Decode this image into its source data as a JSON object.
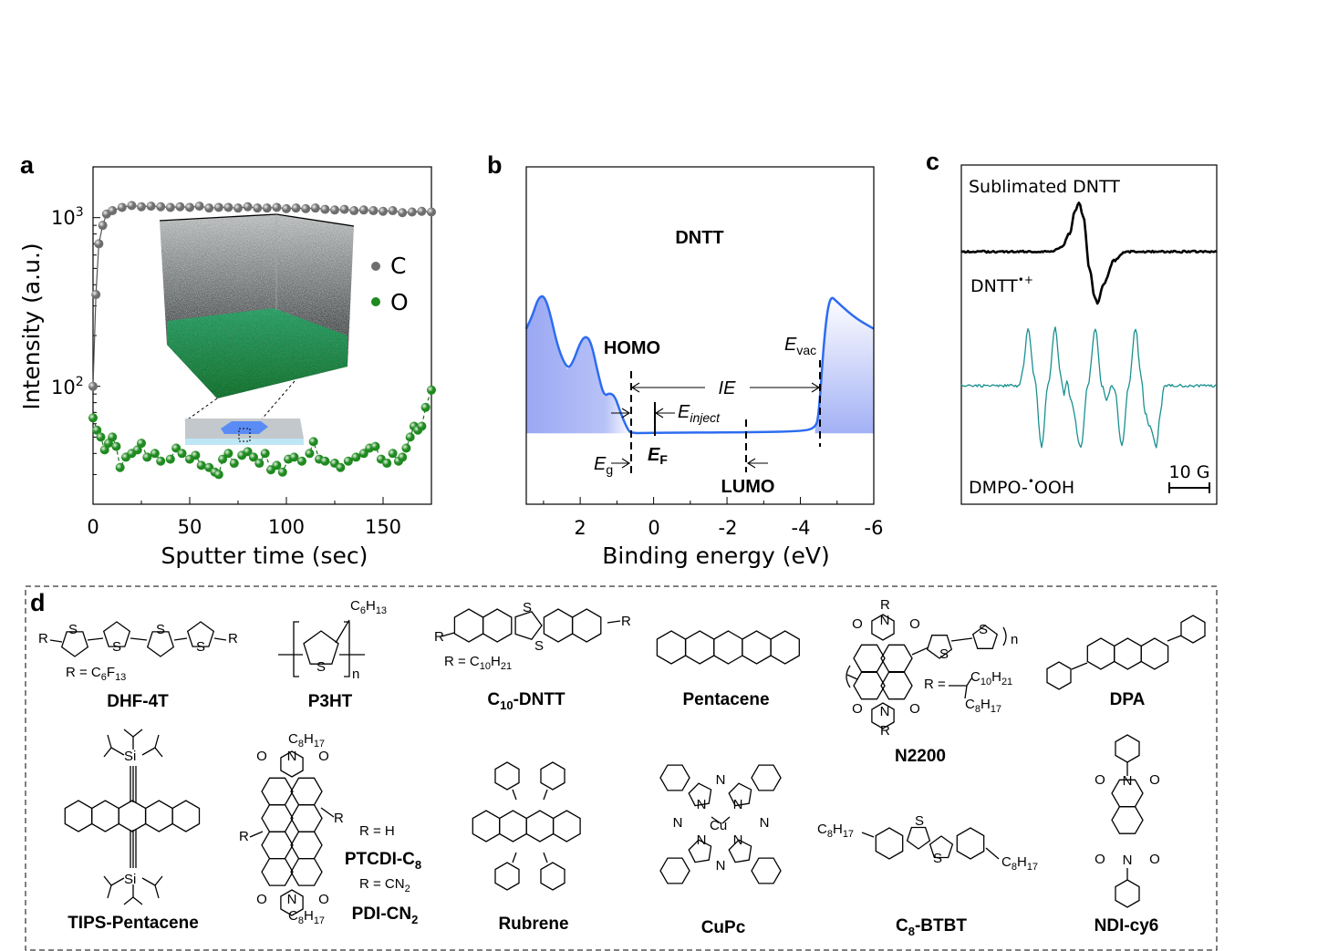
{
  "panels": {
    "a": "a",
    "b": "b",
    "c": "c",
    "d": "d"
  },
  "colors": {
    "carbon": "#6e6e6e",
    "oxygen": "#1f8a1f",
    "ups_curve": "#2d6cf0",
    "ups_fill": "#9fb0f5",
    "epr_dntt": "#000000",
    "epr_dmpo": "#1a9090"
  },
  "chart_data": [
    {
      "panel": "a",
      "type": "scatter",
      "xlabel": "Sputter time (sec)",
      "ylabel": "Intensity (a.u.)",
      "xlim": [
        0,
        175
      ],
      "ylim": [
        20,
        2000
      ],
      "yscale": "log",
      "xticks": [
        "0",
        "50",
        "100",
        "150"
      ],
      "yticks": [
        {
          "base": "10",
          "exp": "3"
        },
        {
          "base": "10",
          "exp": "2"
        }
      ],
      "legend_placement": "right",
      "series": [
        {
          "name": "C",
          "color": "#6e6e6e",
          "points": [
            [
              0,
              100
            ],
            [
              1.5,
              350
            ],
            [
              3,
              700
            ],
            [
              5,
              900
            ],
            [
              7,
              1050
            ],
            [
              10,
              1100
            ],
            [
              15,
              1150
            ],
            [
              20,
              1180
            ],
            [
              25,
              1160
            ],
            [
              30,
              1170
            ],
            [
              35,
              1160
            ],
            [
              40,
              1150
            ],
            [
              45,
              1160
            ],
            [
              50,
              1150
            ],
            [
              55,
              1170
            ],
            [
              60,
              1140
            ],
            [
              65,
              1150
            ],
            [
              70,
              1150
            ],
            [
              75,
              1140
            ],
            [
              80,
              1160
            ],
            [
              85,
              1140
            ],
            [
              90,
              1140
            ],
            [
              95,
              1150
            ],
            [
              100,
              1130
            ],
            [
              105,
              1140
            ],
            [
              110,
              1130
            ],
            [
              115,
              1140
            ],
            [
              120,
              1120
            ],
            [
              125,
              1110
            ],
            [
              130,
              1120
            ],
            [
              135,
              1100
            ],
            [
              140,
              1110
            ],
            [
              145,
              1100
            ],
            [
              150,
              1090
            ],
            [
              155,
              1100
            ],
            [
              160,
              1070
            ],
            [
              165,
              1080
            ],
            [
              170,
              1090
            ],
            [
              175,
              1080
            ]
          ]
        },
        {
          "name": "O",
          "color": "#1f8a1f",
          "points": [
            [
              0,
              65
            ],
            [
              2,
              55
            ],
            [
              4,
              50
            ],
            [
              6,
              42
            ],
            [
              8,
              46
            ],
            [
              10,
              50
            ],
            [
              12,
              44
            ],
            [
              14,
              33
            ],
            [
              17,
              38
            ],
            [
              20,
              40
            ],
            [
              23,
              42
            ],
            [
              25,
              46
            ],
            [
              28,
              38
            ],
            [
              32,
              40
            ],
            [
              35,
              36
            ],
            [
              40,
              37
            ],
            [
              43,
              43
            ],
            [
              46,
              40
            ],
            [
              50,
              37
            ],
            [
              53,
              39
            ],
            [
              56,
              34
            ],
            [
              60,
              33
            ],
            [
              63,
              31
            ],
            [
              65,
              30
            ],
            [
              67,
              37
            ],
            [
              70,
              40
            ],
            [
              73,
              35
            ],
            [
              77,
              39
            ],
            [
              80,
              41
            ],
            [
              83,
              38
            ],
            [
              86,
              35
            ],
            [
              89,
              40
            ],
            [
              92,
              32
            ],
            [
              95,
              34
            ],
            [
              98,
              31
            ],
            [
              101,
              37
            ],
            [
              104,
              38
            ],
            [
              108,
              36
            ],
            [
              112,
              40
            ],
            [
              114,
              47
            ],
            [
              117,
              37
            ],
            [
              120,
              36
            ],
            [
              125,
              35
            ],
            [
              128,
              33
            ],
            [
              132,
              36
            ],
            [
              136,
              38
            ],
            [
              140,
              40
            ],
            [
              143,
              43
            ],
            [
              146,
              44
            ],
            [
              149,
              37
            ],
            [
              152,
              35
            ],
            [
              155,
              40
            ],
            [
              158,
              36
            ],
            [
              160,
              38
            ],
            [
              162,
              43
            ],
            [
              164,
              50
            ],
            [
              166,
              58
            ],
            [
              168,
              55
            ],
            [
              170,
              58
            ],
            [
              172,
              75
            ],
            [
              175,
              95
            ]
          ]
        }
      ]
    },
    {
      "panel": "b",
      "type": "line",
      "title": "DNTT",
      "xlabel": "Binding energy (eV)",
      "xlim": [
        3.47,
        -6
      ],
      "ylim": [
        0,
        1
      ],
      "xticks": [
        "2",
        "0",
        "-2",
        "-4",
        "-6"
      ],
      "xtick_values": [
        2,
        0,
        -2,
        -4,
        -6
      ],
      "points": [
        [
          3.47,
          0.52
        ],
        [
          3.3,
          0.56
        ],
        [
          3.15,
          0.61
        ],
        [
          3.0,
          0.62
        ],
        [
          2.85,
          0.58
        ],
        [
          2.6,
          0.46
        ],
        [
          2.35,
          0.4
        ],
        [
          2.2,
          0.42
        ],
        [
          2.0,
          0.48
        ],
        [
          1.85,
          0.5
        ],
        [
          1.7,
          0.48
        ],
        [
          1.5,
          0.38
        ],
        [
          1.35,
          0.32
        ],
        [
          1.2,
          0.33
        ],
        [
          1.05,
          0.32
        ],
        [
          0.9,
          0.27
        ],
        [
          0.7,
          0.22
        ],
        [
          0.6,
          0.21
        ],
        [
          0,
          0.212
        ],
        [
          -2.5,
          0.213
        ],
        [
          -4.0,
          0.216
        ],
        [
          -4.4,
          0.225
        ],
        [
          -4.5,
          0.26
        ],
        [
          -4.65,
          0.5
        ],
        [
          -4.8,
          0.62
        ],
        [
          -5.0,
          0.6
        ],
        [
          -5.3,
          0.57
        ],
        [
          -5.6,
          0.545
        ],
        [
          -6,
          0.52
        ]
      ],
      "annotations": {
        "homo": "HOMO",
        "lumo": "LUMO",
        "evac": {
          "main": "E",
          "sub": "vac"
        },
        "ie": "IE",
        "einject": {
          "main": "E",
          "sub": "inject"
        },
        "ef": {
          "main": "E",
          "sub": "F"
        },
        "eg": {
          "main": "E",
          "sub": "g"
        }
      }
    },
    {
      "panel": "c",
      "type": "line",
      "scale_bar": "10 G",
      "series": [
        {
          "name": "Sublimated DNTT",
          "label": "DNTT",
          "label_sup": "•+",
          "color": "#000000",
          "points": [
            [
              0,
              0
            ],
            [
              22,
              0
            ],
            [
              25,
              5
            ],
            [
              27,
              20
            ],
            [
              28.3,
              45
            ],
            [
              29.3,
              54
            ],
            [
              30.3,
              40
            ],
            [
              32,
              -20
            ],
            [
              33.2,
              -50
            ],
            [
              33.9,
              -57
            ],
            [
              35.5,
              -35
            ],
            [
              38,
              -10
            ],
            [
              41,
              0
            ],
            [
              63.6,
              0
            ]
          ]
        },
        {
          "name": "DMPO-•OOH",
          "label_pre": "DMPO-",
          "label_sup": "•",
          "label_post": "OOH",
          "color": "#1a9090",
          "points": [
            [
              0,
              0
            ],
            [
              14.5,
              0
            ],
            [
              15.2,
              15
            ],
            [
              16.6,
              63
            ],
            [
              18.2,
              10
            ],
            [
              20,
              -67
            ],
            [
              21.6,
              0
            ],
            [
              23.4,
              63
            ],
            [
              24.8,
              10
            ],
            [
              25.6,
              -10
            ],
            [
              26.3,
              5
            ],
            [
              27.2,
              -15
            ],
            [
              29.8,
              -67
            ],
            [
              31.5,
              0
            ],
            [
              33.4,
              63
            ],
            [
              35,
              0
            ],
            [
              36.2,
              -15
            ],
            [
              37.5,
              0
            ],
            [
              38.2,
              -5
            ],
            [
              40,
              -67
            ],
            [
              41.7,
              0
            ],
            [
              43.4,
              63
            ],
            [
              44.8,
              10
            ],
            [
              45.8,
              -30
            ],
            [
              47,
              -45
            ],
            [
              48.6,
              -67
            ],
            [
              49.6,
              -30
            ],
            [
              50.5,
              0
            ],
            [
              63.6,
              0
            ]
          ]
        }
      ]
    }
  ],
  "molecules": {
    "dhf4t": {
      "name": [
        "DHF-4T"
      ],
      "r_def": [
        "R = C",
        "6",
        "F",
        "13"
      ]
    },
    "p3ht": {
      "name": [
        "P3HT"
      ],
      "sidechain": [
        "C",
        "6",
        "H",
        "13"
      ],
      "n": "n"
    },
    "c10dntt": {
      "name": [
        "C",
        "10",
        "-DNTT"
      ],
      "r_def": [
        "R = C",
        "10",
        "H",
        "21"
      ]
    },
    "pentacene": {
      "name": [
        "Pentacene"
      ]
    },
    "n2200": {
      "name": [
        "N2200"
      ],
      "r_def": [
        "R = ",
        "C",
        "10",
        "H",
        "21",
        "C",
        "8",
        "H",
        "17"
      ],
      "n": "n"
    },
    "dpa": {
      "name": [
        "DPA"
      ]
    },
    "tips": {
      "name": [
        "TIPS-Pentacene"
      ],
      "si": "Si"
    },
    "ptcdi": {
      "name": [
        "PTCDI-C",
        "8"
      ],
      "r_def": "R = H",
      "chain": [
        "C",
        "8",
        "H",
        "17"
      ]
    },
    "pdicn2": {
      "name": [
        "PDI-CN",
        "2"
      ],
      "r_def": [
        "R = CN",
        "2"
      ]
    },
    "rubrene": {
      "name": [
        "Rubrene"
      ]
    },
    "cupc": {
      "name": [
        "CuPc"
      ],
      "metal": "Cu",
      "n": "N"
    },
    "c8btbt": {
      "name": [
        "C",
        "8",
        "-BTBT"
      ],
      "chain": [
        "C",
        "8",
        "H",
        "17"
      ]
    },
    "ndicy6": {
      "name": [
        "NDI-cy6"
      ]
    },
    "atoms": {
      "s": "S",
      "r": "R",
      "o": "O",
      "n": "N"
    }
  }
}
